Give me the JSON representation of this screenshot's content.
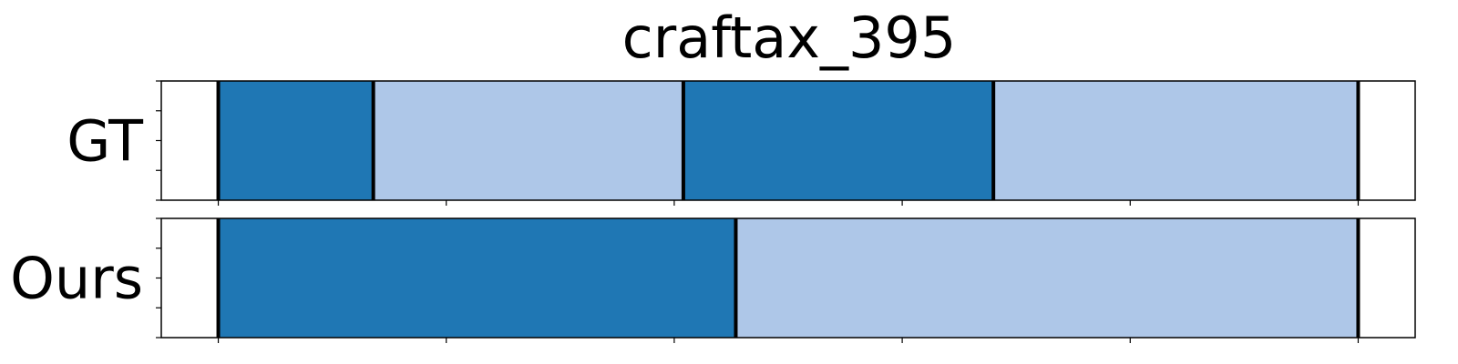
{
  "chart_data": {
    "type": "bar",
    "title": "craftax_395",
    "xlabel": "",
    "ylabel": "",
    "xlim": [
      -25,
      525
    ],
    "xticks": [
      0,
      100,
      200,
      300,
      400,
      500
    ],
    "yticks_per_panel": 5,
    "grid": false,
    "rows": [
      {
        "name": "GT",
        "segments": [
          {
            "start": 0,
            "end": 68,
            "color": "#1f77b4"
          },
          {
            "start": 68,
            "end": 204,
            "color": "#aec7e8"
          },
          {
            "start": 204,
            "end": 340,
            "color": "#1f77b4"
          },
          {
            "start": 340,
            "end": 500,
            "color": "#aec7e8"
          }
        ],
        "boundaries": [
          0,
          68,
          204,
          340,
          500
        ]
      },
      {
        "name": "Ours",
        "segments": [
          {
            "start": 0,
            "end": 227,
            "color": "#1f77b4"
          },
          {
            "start": 227,
            "end": 500,
            "color": "#aec7e8"
          }
        ],
        "boundaries": [
          0,
          227,
          500
        ]
      }
    ]
  }
}
